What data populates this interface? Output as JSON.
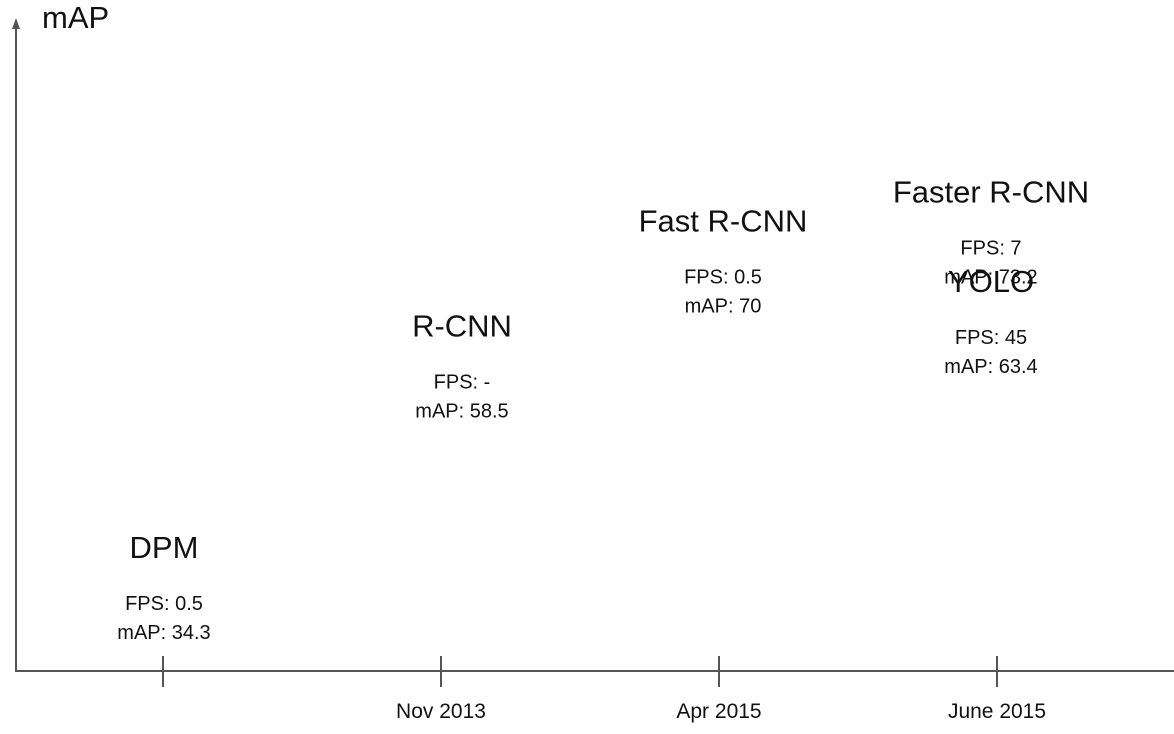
{
  "chart_data": {
    "type": "scatter",
    "title": "",
    "xlabel": "",
    "ylabel": "mAP",
    "grid": false,
    "x_ticks": [
      "",
      "Nov 2013",
      "Apr 2015",
      "June 2015"
    ],
    "ylim": [
      25,
      95
    ],
    "points": [
      {
        "name": "DPM",
        "x_tick": 0,
        "fps": "0.5",
        "map": 34.3,
        "fps_label": "FPS: 0.5",
        "map_label": "mAP: 34.3"
      },
      {
        "name": "R-CNN",
        "x_tick": 1,
        "fps": "-",
        "map": 58.5,
        "fps_label": "FPS: -",
        "map_label": "mAP: 58.5"
      },
      {
        "name": "Fast R-CNN",
        "x_tick": 2,
        "fps": "0.5",
        "map": 70,
        "fps_label": "FPS: 0.5",
        "map_label": "mAP: 70"
      },
      {
        "name": "Faster R-CNN",
        "x_tick": 3,
        "fps": "7",
        "map": 73.2,
        "fps_label": "FPS: 7",
        "map_label": "mAP: 73.2"
      },
      {
        "name": "YOLO",
        "x_tick": 3,
        "fps": "45",
        "map": 63.4,
        "fps_label": "FPS: 45",
        "map_label": "mAP: 63.4"
      }
    ]
  }
}
